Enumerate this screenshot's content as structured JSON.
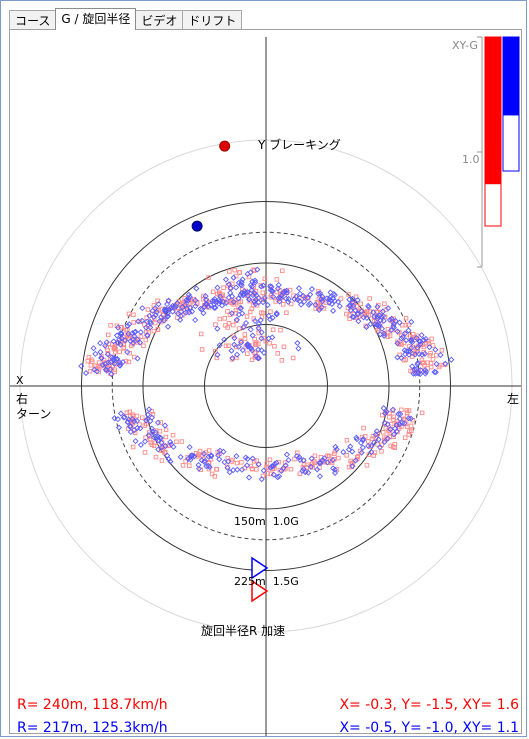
{
  "tabs": [
    {
      "label": "コース",
      "active": false
    },
    {
      "label": "G / 旋回半径",
      "active": true
    },
    {
      "label": "ビデオ",
      "active": false
    },
    {
      "label": "ドリフト",
      "active": false
    }
  ],
  "chart_data": {
    "type": "scatter",
    "axes": {
      "y_top_label": "Y ブレーキング",
      "y_bottom_label": "旋回半径R 加速",
      "x_left_label_1": "X",
      "x_left_label_2": "右",
      "x_left_label_3": "ターン",
      "x_right_label": "左"
    },
    "ring_labels": [
      {
        "text": "150m  1.0G",
        "g": 1.0
      },
      {
        "text": "225m  1.5G",
        "g": 1.5
      }
    ],
    "rings_g": [
      0.5,
      1.0,
      1.5,
      2.0
    ],
    "dashed_ring_g": 1.25,
    "series": [
      {
        "color": "#ff0000",
        "marker": "square"
      },
      {
        "color": "#0000ff",
        "marker": "diamond"
      }
    ],
    "current_points": [
      {
        "x": -0.3,
        "y": 1.5,
        "color": "#dd0000",
        "edge": "#990000"
      },
      {
        "x": -0.5,
        "y": 1.0,
        "color": "#0000cc",
        "edge": "#000066"
      }
    ],
    "xy_gauge": {
      "label": "XY-G",
      "tick_label": "1.0",
      "max": 2.0,
      "bars": [
        {
          "color": "#ff0000",
          "value": 1.6
        },
        {
          "color": "#0000ff",
          "value": 1.1
        }
      ]
    },
    "readouts": [
      {
        "left": "R= 240m, 118.7km/h",
        "right": "X= -0.3, Y= -1.5, XY= 1.6",
        "color": "#ff0000"
      },
      {
        "left": "R= 217m, 125.3km/h",
        "right": "X= -0.5, Y= -1.0, XY= 1.1",
        "color": "#0000ff"
      }
    ]
  }
}
